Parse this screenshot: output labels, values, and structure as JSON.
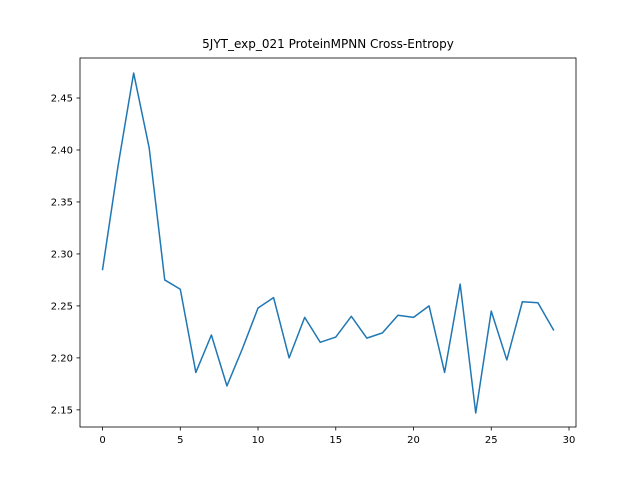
{
  "chart_data": {
    "type": "line",
    "title": "5JYT_exp_021 ProteinMPNN Cross-Entropy",
    "xlabel": "",
    "ylabel": "",
    "xlim": [
      -1.45,
      30.45
    ],
    "ylim": [
      2.1335,
      2.4885
    ],
    "x_ticks": [
      0,
      5,
      10,
      15,
      20,
      25,
      30
    ],
    "y_ticks": [
      2.15,
      2.2,
      2.25,
      2.3,
      2.35,
      2.4,
      2.45
    ],
    "x_tick_labels": [
      "0",
      "5",
      "10",
      "15",
      "20",
      "25",
      "30"
    ],
    "y_tick_labels": [
      "2.15",
      "2.20",
      "2.25",
      "2.30",
      "2.35",
      "2.40",
      "2.45"
    ],
    "grid": false,
    "colors": {
      "line": "#1f77b4",
      "axes": "#000000"
    },
    "series": [
      {
        "x": [
          0,
          1,
          2,
          3,
          4,
          5,
          6,
          7,
          8,
          9,
          10,
          11,
          12,
          13,
          14,
          15,
          16,
          17,
          18,
          19,
          20,
          21,
          22,
          23,
          24,
          25,
          26,
          27,
          28,
          29
        ],
        "values": [
          2.285,
          2.385,
          2.474,
          2.402,
          2.275,
          2.266,
          2.186,
          2.222,
          2.173,
          2.209,
          2.248,
          2.258,
          2.2,
          2.239,
          2.215,
          2.22,
          2.24,
          2.219,
          2.224,
          2.241,
          2.239,
          2.25,
          2.186,
          2.271,
          2.147,
          2.245,
          2.198,
          2.254,
          2.253,
          2.227
        ]
      }
    ]
  }
}
